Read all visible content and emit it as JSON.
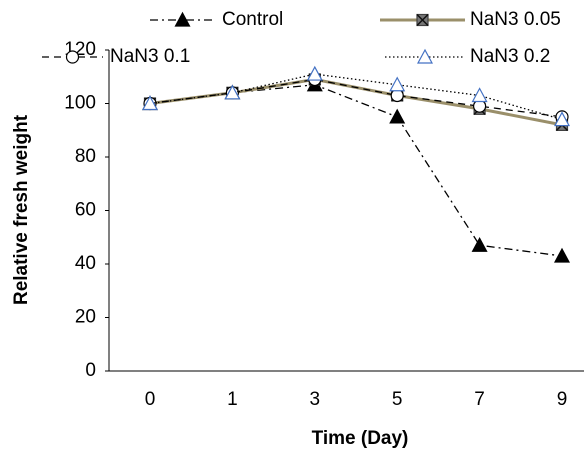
{
  "chart_data": {
    "type": "line",
    "y_label": "Relative fresh weight",
    "x_label": "Time (Day)",
    "categories": [
      "0",
      "1",
      "3",
      "5",
      "7",
      "9"
    ],
    "series": [
      {
        "name": "Control",
        "color": "#000000",
        "dash": "8 4 2 4",
        "marker": "triangle-filled",
        "marker_color": "#000000",
        "values": [
          100,
          104,
          107,
          95,
          47,
          43
        ]
      },
      {
        "name": "NaN3 0.05",
        "color": "#9a8f6a",
        "dash": "none",
        "marker": "square-x",
        "marker_color": "#404040",
        "values": [
          100,
          104,
          109,
          103,
          98,
          92
        ]
      },
      {
        "name": "NaN3 0.1",
        "color": "#000000",
        "dash": "7 5",
        "marker": "circle-open",
        "marker_color": "#000000",
        "values": [
          100,
          104,
          109,
          103,
          99,
          95
        ]
      },
      {
        "name": "NaN3 0.2",
        "color": "#000000",
        "dash": "1.5 2.5",
        "marker": "triangle-open",
        "marker_color": "#4472c4",
        "values": [
          100,
          104,
          111,
          107,
          103,
          94
        ]
      }
    ],
    "ylim": [
      0,
      120
    ],
    "yticks": [
      0,
      20,
      40,
      60,
      80,
      100,
      120
    ],
    "grid": false,
    "legend": "top"
  }
}
